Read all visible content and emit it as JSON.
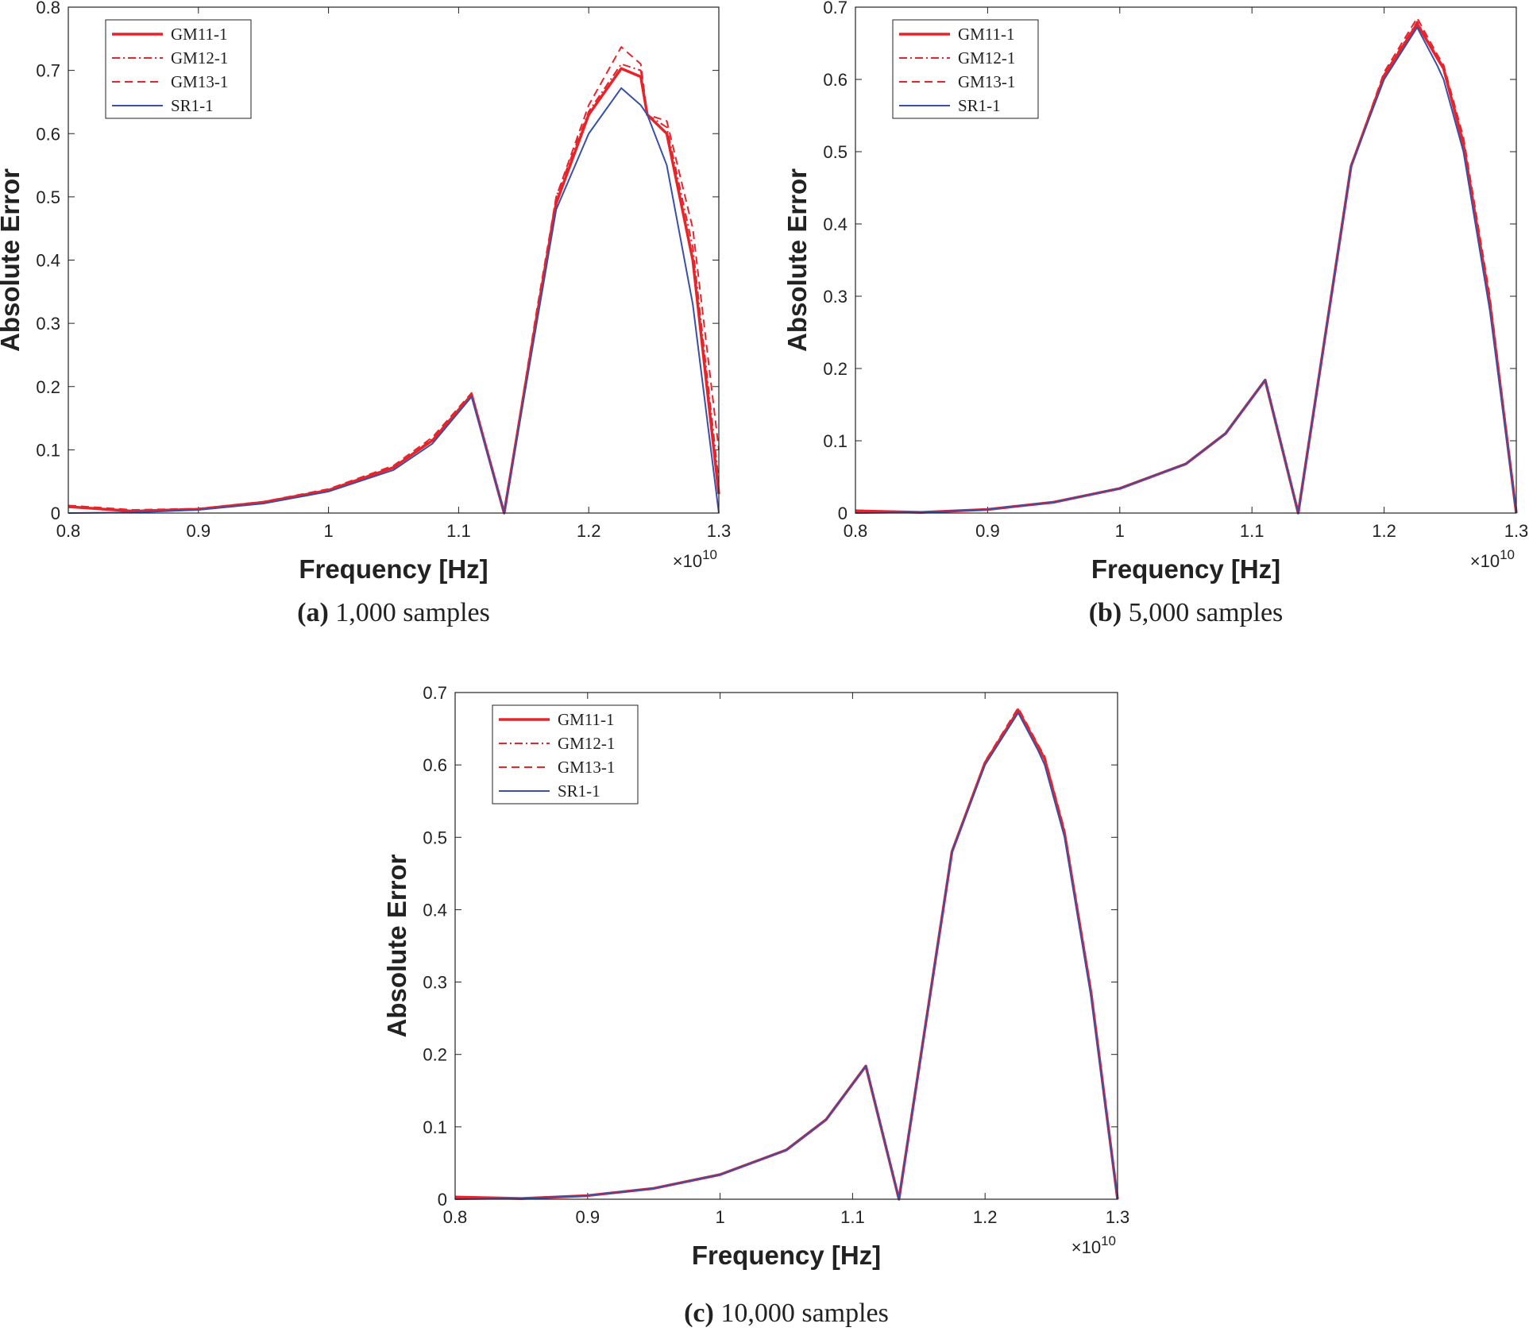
{
  "chart_data": [
    {
      "type": "line",
      "caption_label": "(a)",
      "caption": "1,000 samples",
      "x_label": "Frequency [Hz]",
      "y_label": "Absolute Error",
      "x_scale": {
        "base": "×10",
        "exponent": "10"
      },
      "xlim": [
        0.8,
        1.3
      ],
      "xticks": [
        0.8,
        0.9,
        1,
        1.1,
        1.2,
        1.3
      ],
      "ylim": [
        0,
        0.8
      ],
      "yticks": [
        0,
        0.1,
        0.2,
        0.3,
        0.4,
        0.5,
        0.6,
        0.7,
        0.8
      ],
      "legend": "upper left",
      "x": [
        0.8,
        0.85,
        0.9,
        0.95,
        1.0,
        1.05,
        1.08,
        1.11,
        1.135,
        1.16,
        1.175,
        1.2,
        1.225,
        1.24,
        1.245,
        1.26,
        1.28,
        1.3
      ],
      "series": [
        {
          "name": "GM11-1",
          "color": "#e8242b",
          "line_style": "solid",
          "line_width": 3.5,
          "values": [
            0.01,
            0.003,
            0.006,
            0.017,
            0.036,
            0.072,
            0.115,
            0.187,
            0.0,
            0.31,
            0.49,
            0.63,
            0.703,
            0.69,
            0.63,
            0.6,
            0.4,
            0.03
          ]
        },
        {
          "name": "GM12-1",
          "color": "#e8242b",
          "line_style": "dashdot",
          "line_width": 2,
          "values": [
            0.01,
            0.004,
            0.007,
            0.017,
            0.037,
            0.073,
            0.117,
            0.188,
            0.0,
            0.31,
            0.5,
            0.635,
            0.71,
            0.7,
            0.63,
            0.61,
            0.42,
            0.05
          ]
        },
        {
          "name": "GM13-1",
          "color": "#e8242b",
          "line_style": "dashed",
          "line_width": 2,
          "values": [
            0.012,
            0.005,
            0.007,
            0.018,
            0.038,
            0.075,
            0.12,
            0.19,
            0.0,
            0.32,
            0.5,
            0.645,
            0.737,
            0.71,
            0.63,
            0.62,
            0.45,
            0.1
          ]
        },
        {
          "name": "SR1-1",
          "color": "#3a4fa8",
          "line_style": "solid",
          "line_width": 2,
          "values": [
            0.0,
            0.001,
            0.005,
            0.015,
            0.034,
            0.068,
            0.11,
            0.184,
            0.0,
            0.3,
            0.48,
            0.6,
            0.672,
            0.645,
            0.63,
            0.55,
            0.33,
            0.0
          ]
        }
      ]
    },
    {
      "type": "line",
      "caption_label": "(b)",
      "caption": "5,000 samples",
      "x_label": "Frequency [Hz]",
      "y_label": "Absolute Error",
      "x_scale": {
        "base": "×10",
        "exponent": "10"
      },
      "xlim": [
        0.8,
        1.3
      ],
      "xticks": [
        0.8,
        0.9,
        1,
        1.1,
        1.2,
        1.3
      ],
      "ylim": [
        0,
        0.7
      ],
      "yticks": [
        0,
        0.1,
        0.2,
        0.3,
        0.4,
        0.5,
        0.6,
        0.7
      ],
      "legend": "upper left",
      "x": [
        0.8,
        0.85,
        0.9,
        0.95,
        1.0,
        1.05,
        1.08,
        1.11,
        1.135,
        1.16,
        1.175,
        1.2,
        1.225,
        1.24,
        1.245,
        1.26,
        1.28,
        1.3
      ],
      "series": [
        {
          "name": "GM11-1",
          "color": "#e8242b",
          "line_style": "solid",
          "line_width": 3.5,
          "values": [
            0.003,
            0.001,
            0.005,
            0.015,
            0.034,
            0.068,
            0.11,
            0.184,
            0.0,
            0.3,
            0.48,
            0.605,
            0.677,
            0.63,
            0.615,
            0.51,
            0.29,
            0.0
          ]
        },
        {
          "name": "GM12-1",
          "color": "#e8242b",
          "line_style": "dashdot",
          "line_width": 2,
          "values": [
            0.003,
            0.001,
            0.005,
            0.015,
            0.034,
            0.068,
            0.11,
            0.184,
            0.0,
            0.3,
            0.48,
            0.607,
            0.68,
            0.632,
            0.617,
            0.515,
            0.295,
            0.0
          ]
        },
        {
          "name": "GM13-1",
          "color": "#e8242b",
          "line_style": "dashed",
          "line_width": 2,
          "values": [
            0.004,
            0.001,
            0.005,
            0.015,
            0.034,
            0.068,
            0.11,
            0.184,
            0.0,
            0.3,
            0.48,
            0.61,
            0.685,
            0.635,
            0.62,
            0.52,
            0.3,
            0.005
          ]
        },
        {
          "name": "SR1-1",
          "color": "#3a4fa8",
          "line_style": "solid",
          "line_width": 2,
          "values": [
            0.0,
            0.001,
            0.005,
            0.015,
            0.034,
            0.068,
            0.11,
            0.184,
            0.0,
            0.3,
            0.48,
            0.6,
            0.672,
            0.62,
            0.6,
            0.5,
            0.28,
            0.0
          ]
        }
      ]
    },
    {
      "type": "line",
      "caption_label": "(c)",
      "caption": "10,000 samples",
      "x_label": "Frequency [Hz]",
      "y_label": "Absolute Error",
      "x_scale": {
        "base": "×10",
        "exponent": "10"
      },
      "xlim": [
        0.8,
        1.3
      ],
      "xticks": [
        0.8,
        0.9,
        1,
        1.1,
        1.2,
        1.3
      ],
      "ylim": [
        0,
        0.7
      ],
      "yticks": [
        0,
        0.1,
        0.2,
        0.3,
        0.4,
        0.5,
        0.6,
        0.7
      ],
      "legend": "upper left",
      "x": [
        0.8,
        0.85,
        0.9,
        0.95,
        1.0,
        1.05,
        1.08,
        1.11,
        1.135,
        1.16,
        1.175,
        1.2,
        1.225,
        1.24,
        1.245,
        1.26,
        1.28,
        1.3
      ],
      "series": [
        {
          "name": "GM11-1",
          "color": "#e8242b",
          "line_style": "solid",
          "line_width": 3.5,
          "values": [
            0.003,
            0.001,
            0.005,
            0.015,
            0.034,
            0.068,
            0.11,
            0.184,
            0.0,
            0.3,
            0.48,
            0.603,
            0.675,
            0.625,
            0.608,
            0.505,
            0.285,
            0.0
          ]
        },
        {
          "name": "GM12-1",
          "color": "#e8242b",
          "line_style": "dashdot",
          "line_width": 2,
          "values": [
            0.003,
            0.001,
            0.005,
            0.015,
            0.034,
            0.068,
            0.11,
            0.184,
            0.0,
            0.3,
            0.48,
            0.604,
            0.677,
            0.627,
            0.61,
            0.507,
            0.287,
            0.0
          ]
        },
        {
          "name": "GM13-1",
          "color": "#e8242b",
          "line_style": "dashed",
          "line_width": 2,
          "values": [
            0.003,
            0.001,
            0.005,
            0.015,
            0.034,
            0.068,
            0.11,
            0.184,
            0.0,
            0.3,
            0.48,
            0.605,
            0.679,
            0.628,
            0.612,
            0.51,
            0.29,
            0.0
          ]
        },
        {
          "name": "SR1-1",
          "color": "#3a4fa8",
          "line_style": "solid",
          "line_width": 2,
          "values": [
            0.0,
            0.001,
            0.005,
            0.015,
            0.034,
            0.068,
            0.11,
            0.184,
            0.0,
            0.3,
            0.48,
            0.6,
            0.672,
            0.62,
            0.6,
            0.5,
            0.28,
            0.0
          ]
        }
      ]
    }
  ]
}
